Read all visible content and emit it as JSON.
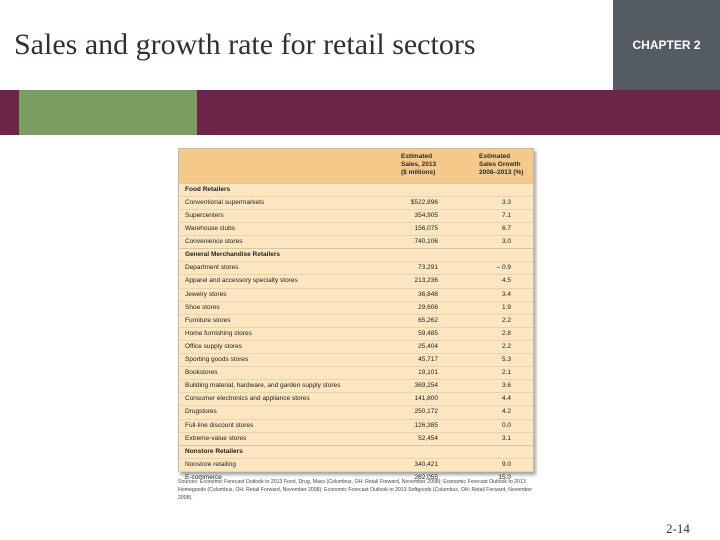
{
  "slide": {
    "title": "Sales and growth rate for retail sectors",
    "chapter": "CHAPTER 2",
    "page_number": "2-14"
  },
  "table": {
    "headers": [
      "Estimated\nSales, 2013\n($ millions)",
      "Estimated\nSales Growth\n2008–2013 (%)"
    ],
    "sections": [
      {
        "name": "Food Retailers",
        "rows": [
          [
            "Conventional supermarkets",
            "$522,896",
            "3.3"
          ],
          [
            "Supercenters",
            "354,905",
            "7.1"
          ],
          [
            "Warehouse clubs",
            "156,075",
            "6.7"
          ],
          [
            "Convenience stores",
            "740,106",
            "3.0"
          ]
        ]
      },
      {
        "name": "General Merchandise Retailers",
        "rows": [
          [
            "Department stores",
            "73,291",
            "– 0.9"
          ],
          [
            "Apparel and accessory specialty stores",
            "213,236",
            "4.5"
          ],
          [
            "Jewelry stores",
            "36,848",
            "3.4"
          ],
          [
            "Shoe stores",
            "29,606",
            "1.9"
          ],
          [
            "Furniture stores",
            "65,262",
            "2.2"
          ],
          [
            "Home furnishing stores",
            "59,485",
            "2.8"
          ],
          [
            "Office supply stores",
            "25,404",
            "2.2"
          ],
          [
            "Sporting goods stores",
            "45,717",
            "5.3"
          ],
          [
            "Bookstores",
            "19,101",
            "2.1"
          ],
          [
            "Building material, hardware, and garden supply stores",
            "369,254",
            "3.6"
          ],
          [
            "Consumer electronics and appliance stores",
            "141,800",
            "4.4"
          ],
          [
            "Drugstores",
            "250,172",
            "4.2"
          ],
          [
            "Full-line discount stores",
            "126,385",
            "0.0"
          ],
          [
            "Extreme-value stores",
            "52,454",
            "3.1"
          ]
        ]
      },
      {
        "name": "Nonstore Retailers",
        "rows": [
          [
            "Nonstore retailing",
            "340,421",
            "9.0"
          ],
          [
            "E-commerce",
            "262,055",
            "15.0"
          ]
        ]
      }
    ],
    "source": "Sources: Economic Forecast Outlook to 2013 Food, Drug, Mass (Columbus, OH: Retail Forward, November 2008); Economic Forecast Outlook to 2013 Homegoods (Columbus, OH: Retail Forward, November 2008); Economic Forecast Outlook to 2013 Softgoods (Columbus, OH: Retail Forward, November 2008)."
  }
}
